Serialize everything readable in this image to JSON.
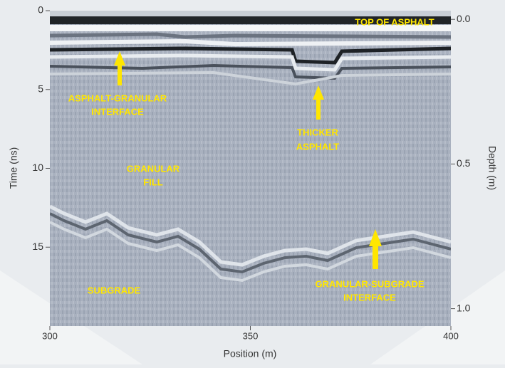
{
  "chart_data": {
    "type": "radargram",
    "xlabel": "Position (m)",
    "ylabel": "Time (ns)",
    "y2label": "Depth (m)",
    "xlim": [
      300,
      400
    ],
    "xticks": [
      300,
      350,
      400
    ],
    "ylim": [
      20,
      0
    ],
    "yticks": [
      0,
      5,
      10,
      15
    ],
    "y2lim": [
      1.06,
      -0.03
    ],
    "y2ticks": [
      {
        "value": 0,
        "label": "0.0"
      },
      0.5,
      {
        "value": 1,
        "label": "1.0"
      }
    ],
    "annotations": [
      [
        "TOP OF ASPHALT"
      ],
      [
        "ASPHALT-GRANULAR",
        "INTERFACE"
      ],
      [
        "THICKER",
        "ASPHALT"
      ],
      [
        "GRANULAR",
        "FILL"
      ],
      [
        "SUBGRADE"
      ],
      [
        "GRANULAR-SUBGRADE",
        "INTERFACE"
      ]
    ]
  }
}
